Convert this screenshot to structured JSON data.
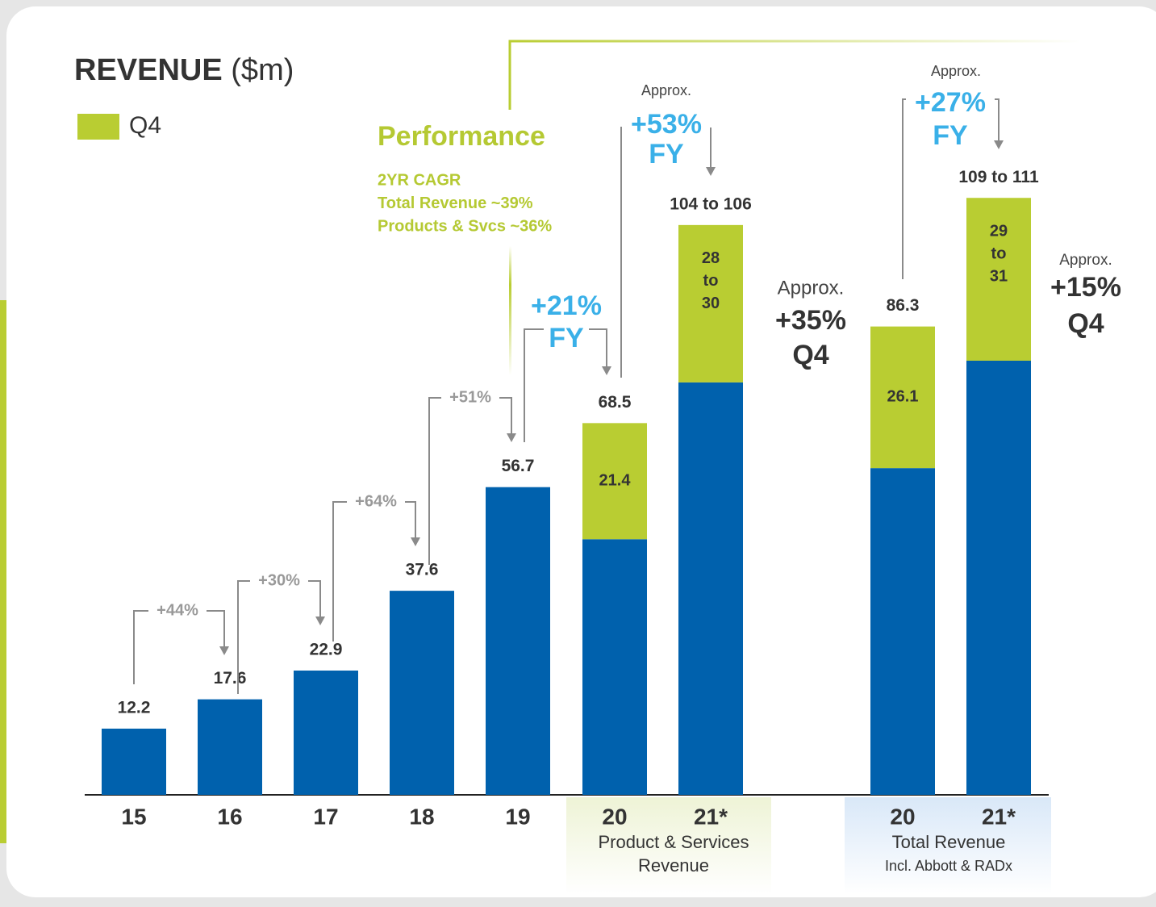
{
  "chart_data": {
    "type": "stacked_bar",
    "title": "REVENUE",
    "title_unit": "($m)",
    "categories": [
      "15",
      "16",
      "17",
      "18",
      "19",
      "20",
      "21*",
      "20",
      "21*"
    ],
    "series": [
      {
        "color": "#0061ad",
        "values": [
          12.2,
          17.6,
          22.9,
          37.6,
          56.7,
          47.1,
          76,
          60.2,
          80
        ]
      },
      {
        "name": "Q4",
        "color": "#b9cd32",
        "values": [
          null,
          null,
          null,
          null,
          null,
          21.4,
          29,
          26.1,
          30
        ],
        "value_labels": [
          null,
          null,
          null,
          null,
          null,
          [
            "21.4"
          ],
          [
            "28",
            "to",
            "30"
          ],
          [
            "26.1"
          ],
          [
            "29",
            "to",
            "31"
          ]
        ]
      }
    ],
    "totals": [
      12.2,
      17.6,
      22.9,
      37.6,
      56.7,
      68.5,
      105,
      86.3,
      110
    ],
    "total_labels": [
      "12.2",
      "17.6",
      "22.9",
      "37.6",
      "56.7",
      "68.5",
      "104 to 106",
      "86.3",
      "109 to 111"
    ],
    "ylim": [
      0,
      131
    ],
    "growth": [
      "+44%",
      "+30%",
      "+64%",
      "+51%"
    ],
    "fy_callouts": [
      {
        "value": "+21%",
        "label": "FY"
      },
      {
        "pre": "Approx.",
        "value": "+53%",
        "label": "FY"
      },
      {
        "pre": "Approx.",
        "value": "+27%",
        "label": "FY"
      }
    ],
    "q4_callouts": [
      {
        "pre": "Approx.",
        "value": "+35%",
        "label": "Q4"
      },
      {
        "pre": "Approx.",
        "value": "+15%",
        "label": "Q4"
      }
    ],
    "performance": {
      "title": "Performance",
      "lines": [
        "2YR CAGR",
        "Total Revenue ~39%",
        "Products & Svcs ~36%"
      ]
    },
    "groups": [
      {
        "lines": [
          "Product & Services",
          "Revenue"
        ]
      },
      {
        "lines": [
          "Total Revenue",
          "Incl. Abbott & RADx"
        ]
      }
    ]
  }
}
